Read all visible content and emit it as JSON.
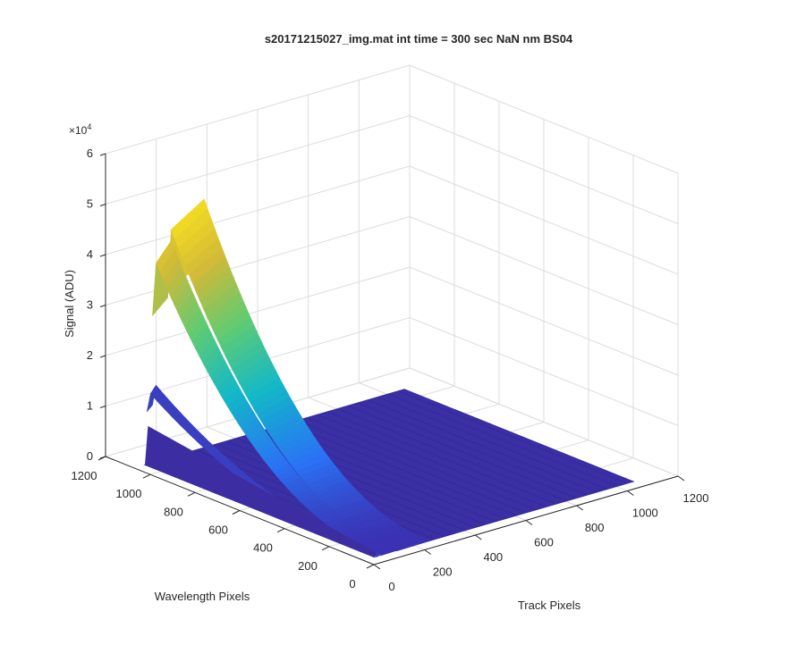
{
  "chart_data": {
    "type": "surface",
    "title": "s20171215027_img.mat int time = 300 sec  NaN nm BS04",
    "xlabel": "Track Pixels",
    "ylabel": "Wavelength Pixels",
    "zlabel": "Signal (ADU)",
    "z_exponent_label": "×10",
    "z_exponent": "4",
    "xlim": [
      0,
      1200
    ],
    "ylim": [
      0,
      1200
    ],
    "zlim": [
      0,
      6
    ],
    "x_ticks": [
      "0",
      "200",
      "400",
      "600",
      "800",
      "1000",
      "1200"
    ],
    "y_ticks": [
      "0",
      "200",
      "400",
      "600",
      "800",
      "1000",
      "1200"
    ],
    "z_ticks": [
      "0",
      "1",
      "2",
      "3",
      "4",
      "5",
      "6"
    ],
    "grid": true,
    "colormap": [
      "#3e26a8",
      "#2a73f5",
      "#12b8c8",
      "#5fcb73",
      "#d0ba38",
      "#f9e01e"
    ],
    "surface_extent": {
      "x": [
        0,
        1024
      ],
      "y": [
        0,
        1024
      ]
    },
    "illuminated_band": {
      "x_range": [
        0,
        220
      ],
      "profile_peak_wavelength": 1020
    },
    "peak_signal_x1e4": 5.25,
    "inner_ridge_peak_x1e4": 4.6,
    "dark_ridge_peak_x1e4": 1.75,
    "background_signal_x1e4": 0.15
  }
}
